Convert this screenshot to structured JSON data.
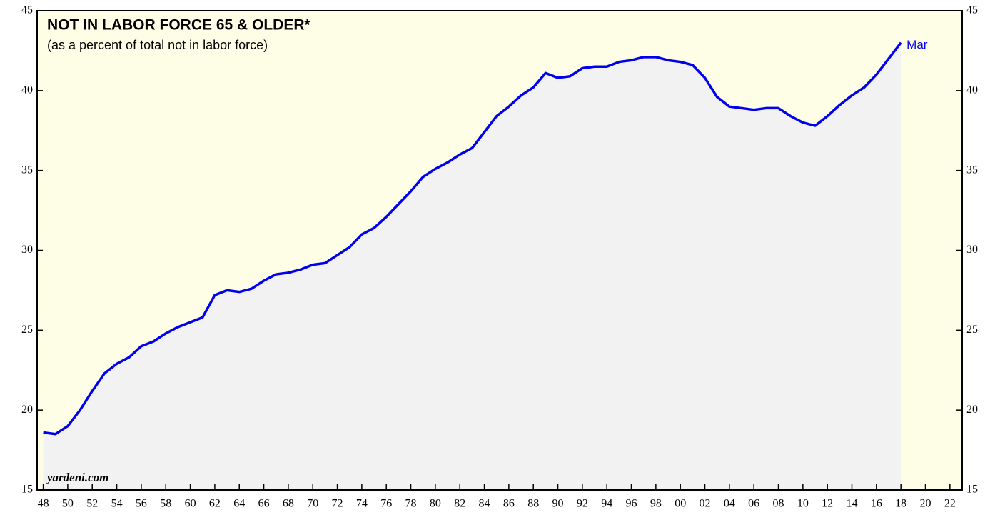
{
  "chart_data": {
    "type": "line",
    "title": "NOT IN LABOR FORCE 65 & OLDER*",
    "subtitle": "(as a percent of total not in labor force)",
    "source": "yardeni.com",
    "annotation": "Mar",
    "x": [
      1948,
      1949,
      1950,
      1951,
      1952,
      1953,
      1954,
      1955,
      1956,
      1957,
      1958,
      1959,
      1960,
      1961,
      1962,
      1963,
      1964,
      1965,
      1966,
      1967,
      1968,
      1969,
      1970,
      1971,
      1972,
      1973,
      1974,
      1975,
      1976,
      1977,
      1978,
      1979,
      1980,
      1981,
      1982,
      1983,
      1984,
      1985,
      1986,
      1987,
      1988,
      1989,
      1990,
      1991,
      1992,
      1993,
      1994,
      1995,
      1996,
      1997,
      1998,
      1999,
      2000,
      2001,
      2002,
      2003,
      2004,
      2005,
      2006,
      2007,
      2008,
      2009,
      2010,
      2011,
      2012,
      2013,
      2014,
      2015,
      2016,
      2017,
      2018
    ],
    "series": [
      {
        "name": "Not in labor force 65 & older",
        "color": "#0000ee",
        "fill": "#f2f2f2",
        "values": [
          18.6,
          18.5,
          19.0,
          20.0,
          21.2,
          22.3,
          22.9,
          23.3,
          24.0,
          24.3,
          24.8,
          25.2,
          25.5,
          25.8,
          27.2,
          27.5,
          27.4,
          27.6,
          28.1,
          28.5,
          28.6,
          28.8,
          29.1,
          29.2,
          29.7,
          30.2,
          31.0,
          31.4,
          32.1,
          32.9,
          33.7,
          34.6,
          35.1,
          35.5,
          36.0,
          36.4,
          37.4,
          38.4,
          39.0,
          39.7,
          40.2,
          41.1,
          40.8,
          40.9,
          41.4,
          41.5,
          41.5,
          41.8,
          41.9,
          42.1,
          42.1,
          41.9,
          41.8,
          41.6,
          40.8,
          39.6,
          39.0,
          38.9,
          38.8,
          38.9,
          38.9,
          38.4,
          38.0,
          37.8,
          38.4,
          39.1,
          39.7,
          40.2,
          41.0,
          42.0,
          43.0
        ]
      }
    ],
    "xlim": [
      1947.5,
      2023
    ],
    "xticks": [
      {
        "value": 1948,
        "label": "48"
      },
      {
        "value": 1950,
        "label": "50"
      },
      {
        "value": 1952,
        "label": "52"
      },
      {
        "value": 1954,
        "label": "54"
      },
      {
        "value": 1956,
        "label": "56"
      },
      {
        "value": 1958,
        "label": "58"
      },
      {
        "value": 1960,
        "label": "60"
      },
      {
        "value": 1962,
        "label": "62"
      },
      {
        "value": 1964,
        "label": "64"
      },
      {
        "value": 1966,
        "label": "66"
      },
      {
        "value": 1968,
        "label": "68"
      },
      {
        "value": 1970,
        "label": "70"
      },
      {
        "value": 1972,
        "label": "72"
      },
      {
        "value": 1974,
        "label": "74"
      },
      {
        "value": 1976,
        "label": "76"
      },
      {
        "value": 1978,
        "label": "78"
      },
      {
        "value": 1980,
        "label": "80"
      },
      {
        "value": 1982,
        "label": "82"
      },
      {
        "value": 1984,
        "label": "84"
      },
      {
        "value": 1986,
        "label": "86"
      },
      {
        "value": 1988,
        "label": "88"
      },
      {
        "value": 1990,
        "label": "90"
      },
      {
        "value": 1992,
        "label": "92"
      },
      {
        "value": 1994,
        "label": "94"
      },
      {
        "value": 1996,
        "label": "96"
      },
      {
        "value": 1998,
        "label": "98"
      },
      {
        "value": 2000,
        "label": "00"
      },
      {
        "value": 2002,
        "label": "02"
      },
      {
        "value": 2004,
        "label": "04"
      },
      {
        "value": 2006,
        "label": "06"
      },
      {
        "value": 2008,
        "label": "08"
      },
      {
        "value": 2010,
        "label": "10"
      },
      {
        "value": 2012,
        "label": "12"
      },
      {
        "value": 2014,
        "label": "14"
      },
      {
        "value": 2016,
        "label": "16"
      },
      {
        "value": 2018,
        "label": "18"
      },
      {
        "value": 2020,
        "label": "20"
      },
      {
        "value": 2022,
        "label": "22"
      }
    ],
    "ylim": [
      15,
      45
    ],
    "yticks": [
      15,
      20,
      25,
      30,
      35,
      40,
      45
    ],
    "background": "#fefde6"
  }
}
